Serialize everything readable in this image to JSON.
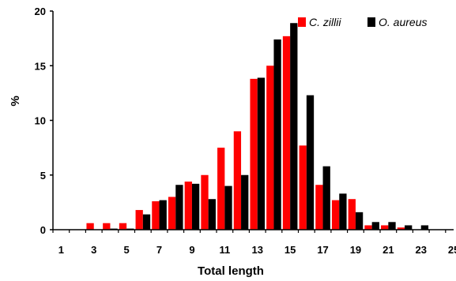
{
  "chart_data": {
    "type": "bar",
    "xlabel": "Total length",
    "ylabel": "%",
    "ylim": [
      0,
      20
    ],
    "y_ticks": [
      0,
      5,
      10,
      15,
      20
    ],
    "x_tick_labels": [
      "1",
      "3",
      "5",
      "7",
      "9",
      "11",
      "13",
      "15",
      "17",
      "19",
      "21",
      "23",
      "25"
    ],
    "x": [
      1,
      2,
      3,
      4,
      5,
      6,
      7,
      8,
      9,
      10,
      11,
      12,
      13,
      14,
      15,
      16,
      17,
      18,
      19,
      20,
      21,
      22,
      23,
      24,
      25
    ],
    "legend_position": "top-right",
    "grid": false,
    "series": [
      {
        "name": "C. zillii",
        "color": "#ff0000",
        "values": [
          0,
          0,
          0.6,
          0.6,
          0.6,
          1.8,
          2.6,
          3.0,
          4.4,
          5.0,
          7.5,
          9.0,
          13.8,
          15.0,
          17.7,
          7.7,
          4.1,
          2.7,
          2.8,
          0.4,
          0.4,
          0.2,
          0,
          0,
          0
        ]
      },
      {
        "name": "O. aureus",
        "color": "#000000",
        "values": [
          0,
          0,
          0,
          0.1,
          0.1,
          1.4,
          2.7,
          4.1,
          4.2,
          2.8,
          4.0,
          5.0,
          13.9,
          17.4,
          18.9,
          12.3,
          5.8,
          3.3,
          1.6,
          0.7,
          0.7,
          0.4,
          0.4,
          0,
          0
        ]
      }
    ]
  }
}
